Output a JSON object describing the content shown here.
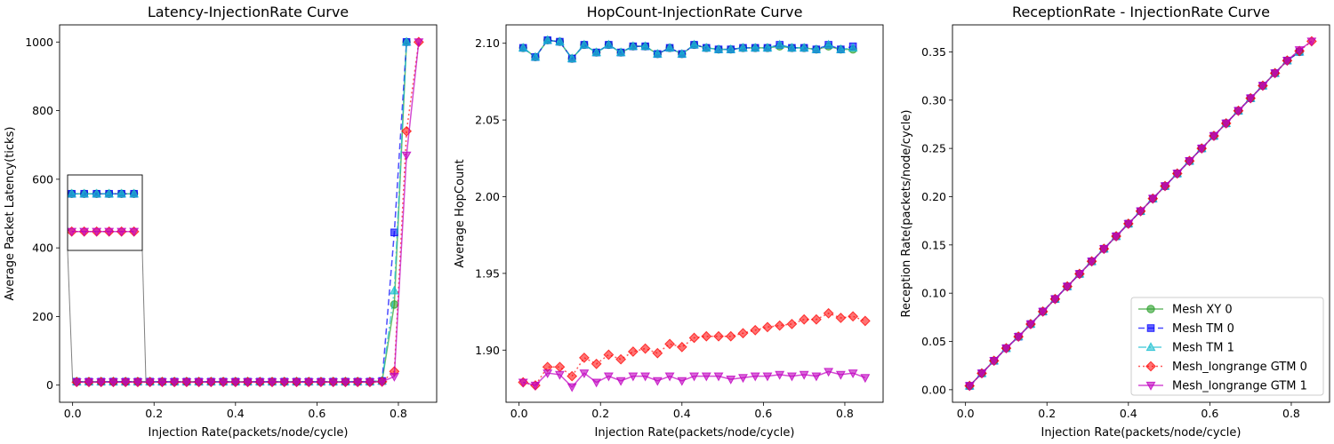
{
  "chart_data": [
    {
      "type": "line",
      "title": "Latency-InjectionRate Curve",
      "xlabel": "Injection Rate(packets/node/cycle)",
      "ylabel": "Average Packet Latency(ticks)",
      "xlim": [
        -0.032,
        0.894
      ],
      "ylim": [
        -50,
        1050
      ],
      "xticks": [
        0.0,
        0.2,
        0.4,
        0.6,
        0.8
      ],
      "xtick_labels": [
        "0.0",
        "0.2",
        "0.4",
        "0.6",
        "0.8"
      ],
      "yticks": [
        0,
        200,
        400,
        600,
        800,
        1000
      ],
      "ytick_labels": [
        "0",
        "200",
        "400",
        "600",
        "800",
        "1000"
      ],
      "x": [
        0.01,
        0.04,
        0.07,
        0.1,
        0.13,
        0.16,
        0.19,
        0.22,
        0.25,
        0.28,
        0.31,
        0.34,
        0.37,
        0.4,
        0.43,
        0.46,
        0.49,
        0.52,
        0.55,
        0.58,
        0.61,
        0.64,
        0.67,
        0.7,
        0.73,
        0.76,
        0.79,
        0.82,
        0.85
      ],
      "series": [
        {
          "name": "Mesh XY 0",
          "values": [
            10,
            10,
            10,
            10,
            10,
            10,
            10,
            10,
            10,
            10,
            10,
            10,
            10,
            10,
            10,
            10,
            10,
            10,
            10,
            10,
            10,
            10,
            10,
            10,
            10,
            12,
            235,
            1000,
            null
          ]
        },
        {
          "name": "Mesh TM 0",
          "values": [
            10,
            10,
            10,
            10,
            10,
            10,
            10,
            10,
            10,
            10,
            10,
            10,
            10,
            10,
            10,
            10,
            10,
            10,
            10,
            10,
            10,
            10,
            10,
            10,
            10,
            12,
            445,
            1000,
            null
          ]
        },
        {
          "name": "Mesh TM 1",
          "values": [
            10,
            10,
            10,
            10,
            10,
            10,
            10,
            10,
            10,
            10,
            10,
            10,
            10,
            10,
            10,
            10,
            10,
            10,
            10,
            10,
            10,
            10,
            10,
            10,
            10,
            12,
            275,
            1000,
            null
          ]
        },
        {
          "name": "Mesh_longrange GTM 0",
          "values": [
            9,
            9,
            9,
            9,
            9,
            9,
            9,
            9,
            9,
            9,
            9,
            9,
            9,
            9,
            9,
            9,
            9,
            9,
            9,
            9,
            9,
            9,
            9,
            9,
            9,
            10,
            40,
            740,
            1000
          ]
        },
        {
          "name": "Mesh_longrange GTM 1",
          "values": [
            9,
            9,
            9,
            9,
            9,
            9,
            9,
            9,
            9,
            9,
            9,
            9,
            9,
            9,
            9,
            9,
            9,
            9,
            9,
            9,
            9,
            9,
            9,
            9,
            9,
            10,
            25,
            670,
            1000
          ]
        }
      ]
    },
    {
      "type": "line",
      "title": "HopCount-InjectionRate Curve",
      "xlabel": "Injection Rate(packets/node/cycle)",
      "ylabel": "Average HopCount",
      "xlim": [
        -0.032,
        0.894
      ],
      "ylim": [
        1.866,
        2.112
      ],
      "xticks": [
        0.0,
        0.2,
        0.4,
        0.6,
        0.8
      ],
      "xtick_labels": [
        "0.0",
        "0.2",
        "0.4",
        "0.6",
        "0.8"
      ],
      "yticks": [
        1.9,
        1.95,
        2.0,
        2.05,
        2.1
      ],
      "ytick_labels": [
        "1.90",
        "1.95",
        "2.00",
        "2.05",
        "2.10"
      ],
      "x": [
        0.01,
        0.04,
        0.07,
        0.1,
        0.13,
        0.16,
        0.19,
        0.22,
        0.25,
        0.28,
        0.31,
        0.34,
        0.37,
        0.4,
        0.43,
        0.46,
        0.49,
        0.52,
        0.55,
        0.58,
        0.61,
        0.64,
        0.67,
        0.7,
        0.73,
        0.76,
        0.79,
        0.82,
        0.85
      ],
      "series": [
        {
          "name": "Mesh XY 0",
          "values": [
            2.097,
            2.091,
            2.102,
            2.101,
            2.09,
            2.099,
            2.094,
            2.099,
            2.094,
            2.098,
            2.098,
            2.093,
            2.097,
            2.093,
            2.099,
            2.097,
            2.096,
            2.096,
            2.097,
            2.097,
            2.097,
            2.098,
            2.097,
            2.097,
            2.096,
            2.098,
            2.096,
            2.096,
            null
          ]
        },
        {
          "name": "Mesh TM 0",
          "values": [
            2.097,
            2.091,
            2.102,
            2.101,
            2.09,
            2.099,
            2.094,
            2.099,
            2.094,
            2.098,
            2.098,
            2.093,
            2.097,
            2.093,
            2.099,
            2.097,
            2.096,
            2.096,
            2.097,
            2.097,
            2.097,
            2.099,
            2.097,
            2.097,
            2.096,
            2.099,
            2.096,
            2.098,
            null
          ]
        },
        {
          "name": "Mesh TM 1",
          "values": [
            2.097,
            2.091,
            2.102,
            2.101,
            2.09,
            2.099,
            2.094,
            2.099,
            2.094,
            2.098,
            2.098,
            2.093,
            2.097,
            2.093,
            2.099,
            2.097,
            2.096,
            2.096,
            2.097,
            2.097,
            2.097,
            2.099,
            2.097,
            2.097,
            2.096,
            2.099,
            2.096,
            2.097,
            null
          ]
        },
        {
          "name": "Mesh_longrange GTM 0",
          "values": [
            1.879,
            1.877,
            1.889,
            1.889,
            1.883,
            1.895,
            1.891,
            1.897,
            1.894,
            1.899,
            1.901,
            1.898,
            1.904,
            1.902,
            1.908,
            1.909,
            1.909,
            1.909,
            1.911,
            1.913,
            1.915,
            1.916,
            1.917,
            1.92,
            1.92,
            1.924,
            1.921,
            1.922,
            1.919
          ]
        },
        {
          "name": "Mesh_longrange GTM 1",
          "values": [
            1.879,
            1.877,
            1.885,
            1.884,
            1.876,
            1.885,
            1.879,
            1.883,
            1.88,
            1.883,
            1.883,
            1.88,
            1.883,
            1.88,
            1.883,
            1.883,
            1.883,
            1.881,
            1.882,
            1.883,
            1.883,
            1.884,
            1.883,
            1.884,
            1.883,
            1.886,
            1.884,
            1.885,
            1.882
          ]
        }
      ]
    },
    {
      "type": "line",
      "title": "ReceptionRate - InjectionRate Curve",
      "xlabel": "Injection Rate(packets/node/cycle)",
      "ylabel": "Reception Rate(packets/node/cycle)",
      "xlim": [
        -0.032,
        0.894
      ],
      "ylim": [
        -0.013,
        0.378
      ],
      "xticks": [
        0.0,
        0.2,
        0.4,
        0.6,
        0.8
      ],
      "xtick_labels": [
        "0.0",
        "0.2",
        "0.4",
        "0.6",
        "0.8"
      ],
      "yticks": [
        0.0,
        0.05,
        0.1,
        0.15,
        0.2,
        0.25,
        0.3,
        0.35
      ],
      "ytick_labels": [
        "0.00",
        "0.05",
        "0.10",
        "0.15",
        "0.20",
        "0.25",
        "0.30",
        "0.35"
      ],
      "x": [
        0.01,
        0.04,
        0.07,
        0.1,
        0.13,
        0.16,
        0.19,
        0.22,
        0.25,
        0.28,
        0.31,
        0.34,
        0.37,
        0.4,
        0.43,
        0.46,
        0.49,
        0.52,
        0.55,
        0.58,
        0.61,
        0.64,
        0.67,
        0.7,
        0.73,
        0.76,
        0.79,
        0.82,
        0.85
      ],
      "series": [
        {
          "name": "Mesh XY 0",
          "values": [
            0.004,
            0.017,
            0.03,
            0.043,
            0.055,
            0.068,
            0.081,
            0.094,
            0.107,
            0.12,
            0.133,
            0.146,
            0.159,
            0.172,
            0.185,
            0.198,
            0.211,
            0.224,
            0.237,
            0.25,
            0.263,
            0.276,
            0.289,
            0.302,
            0.315,
            0.328,
            0.341,
            0.35,
            null
          ]
        },
        {
          "name": "Mesh TM 0",
          "values": [
            0.004,
            0.017,
            0.03,
            0.043,
            0.055,
            0.068,
            0.081,
            0.094,
            0.107,
            0.12,
            0.133,
            0.146,
            0.159,
            0.172,
            0.185,
            0.198,
            0.211,
            0.224,
            0.237,
            0.25,
            0.263,
            0.276,
            0.289,
            0.302,
            0.315,
            0.328,
            0.341,
            0.35,
            null
          ]
        },
        {
          "name": "Mesh TM 1",
          "values": [
            0.004,
            0.017,
            0.03,
            0.043,
            0.055,
            0.068,
            0.081,
            0.094,
            0.107,
            0.12,
            0.133,
            0.146,
            0.159,
            0.172,
            0.185,
            0.198,
            0.211,
            0.224,
            0.237,
            0.25,
            0.263,
            0.276,
            0.289,
            0.302,
            0.315,
            0.328,
            0.341,
            0.35,
            null
          ]
        },
        {
          "name": "Mesh_longrange GTM 0",
          "values": [
            0.004,
            0.017,
            0.03,
            0.043,
            0.055,
            0.068,
            0.081,
            0.094,
            0.107,
            0.12,
            0.133,
            0.146,
            0.159,
            0.172,
            0.185,
            0.198,
            0.211,
            0.224,
            0.237,
            0.25,
            0.263,
            0.276,
            0.289,
            0.302,
            0.315,
            0.328,
            0.341,
            0.351,
            0.361
          ]
        },
        {
          "name": "Mesh_longrange GTM 1",
          "values": [
            0.004,
            0.017,
            0.03,
            0.043,
            0.055,
            0.068,
            0.081,
            0.094,
            0.107,
            0.12,
            0.133,
            0.146,
            0.159,
            0.172,
            0.185,
            0.198,
            0.211,
            0.224,
            0.237,
            0.25,
            0.263,
            0.276,
            0.289,
            0.302,
            0.315,
            0.328,
            0.341,
            0.352,
            0.361
          ]
        }
      ],
      "legend": {
        "placement": "lower-right"
      }
    }
  ],
  "inset": {
    "panel": 0,
    "xlim": [
      0.0,
      0.18
    ],
    "ylim": [
      8.5,
      10.5
    ]
  },
  "styles": [
    {
      "color": "#2ca02c",
      "marker": "circle",
      "dash": "",
      "opacity": 0.6
    },
    {
      "color": "#0000ff",
      "marker": "square",
      "dash": "7,4",
      "opacity": 0.6
    },
    {
      "color": "#17becf",
      "marker": "triangle",
      "dash": "9,3,2,3",
      "opacity": 0.6
    },
    {
      "color": "#ff0000",
      "marker": "diamond",
      "dash": "2,3",
      "opacity": 0.55
    },
    {
      "color": "#c000c0",
      "marker": "triangle-down",
      "dash": "",
      "opacity": 0.6
    }
  ]
}
